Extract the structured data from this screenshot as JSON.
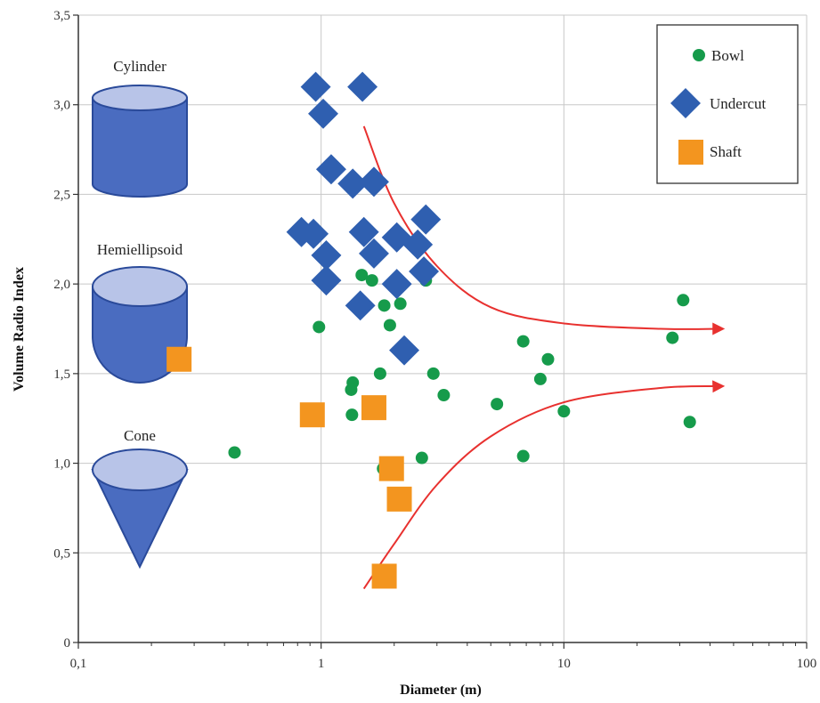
{
  "chart_data": {
    "type": "scatter",
    "xscale": "log",
    "xlim": [
      0.1,
      100
    ],
    "ylim": [
      0,
      3.5
    ],
    "xlabel": "Diameter (m)",
    "ylabel": "Volume Radio Index",
    "grid": true,
    "legend_position": "top-right",
    "x_ticks": [
      {
        "value": 0.1,
        "label": "0,1"
      },
      {
        "value": 1,
        "label": "1"
      },
      {
        "value": 10,
        "label": "10"
      },
      {
        "value": 100,
        "label": "100"
      }
    ],
    "y_ticks": [
      {
        "value": 0,
        "label": "0"
      },
      {
        "value": 0.5,
        "label": "0,5"
      },
      {
        "value": 1.0,
        "label": "1,0"
      },
      {
        "value": 1.5,
        "label": "1,5"
      },
      {
        "value": 2.0,
        "label": "2,0"
      },
      {
        "value": 2.5,
        "label": "2,5"
      },
      {
        "value": 3.0,
        "label": "3,0"
      },
      {
        "value": 3.5,
        "label": "3,5"
      }
    ],
    "series": [
      {
        "name": "Bowl",
        "marker": "circle",
        "color": "#169b4b",
        "points": [
          [
            0.44,
            1.06
          ],
          [
            0.98,
            1.76
          ],
          [
            1.35,
            1.45
          ],
          [
            1.33,
            1.41
          ],
          [
            1.34,
            1.27
          ],
          [
            1.47,
            2.05
          ],
          [
            1.62,
            2.02
          ],
          [
            1.75,
            1.5
          ],
          [
            1.82,
            1.88
          ],
          [
            1.92,
            1.77
          ],
          [
            2.12,
            1.89
          ],
          [
            2.7,
            2.02
          ],
          [
            2.9,
            1.5
          ],
          [
            3.2,
            1.38
          ],
          [
            1.8,
            0.97
          ],
          [
            2.6,
            1.03
          ],
          [
            5.3,
            1.33
          ],
          [
            6.8,
            1.68
          ],
          [
            6.8,
            1.04
          ],
          [
            8.0,
            1.47
          ],
          [
            8.6,
            1.58
          ],
          [
            10.0,
            1.29
          ],
          [
            28.0,
            1.7
          ],
          [
            31.0,
            1.91
          ],
          [
            33.0,
            1.23
          ]
        ]
      },
      {
        "name": "Undercut",
        "marker": "diamond",
        "color": "#2f5fb0",
        "points": [
          [
            0.95,
            3.1
          ],
          [
            1.48,
            3.1
          ],
          [
            1.02,
            2.95
          ],
          [
            1.1,
            2.64
          ],
          [
            1.35,
            2.56
          ],
          [
            1.65,
            2.57
          ],
          [
            0.83,
            2.29
          ],
          [
            0.93,
            2.28
          ],
          [
            1.05,
            2.16
          ],
          [
            1.05,
            2.02
          ],
          [
            1.5,
            2.29
          ],
          [
            1.65,
            2.17
          ],
          [
            2.05,
            2.26
          ],
          [
            2.5,
            2.22
          ],
          [
            2.7,
            2.36
          ],
          [
            2.65,
            2.07
          ],
          [
            2.05,
            2.0
          ],
          [
            1.45,
            1.88
          ],
          [
            2.2,
            1.63
          ]
        ]
      },
      {
        "name": "Shaft",
        "marker": "square",
        "color": "#f3951f",
        "points": [
          [
            0.26,
            1.58
          ],
          [
            0.92,
            1.27
          ],
          [
            1.65,
            1.31
          ],
          [
            1.95,
            0.97
          ],
          [
            2.1,
            0.8
          ],
          [
            1.82,
            0.37
          ]
        ]
      }
    ],
    "trend_curves": [
      {
        "color": "#e8312f",
        "points": [
          [
            1.5,
            2.88
          ],
          [
            2.0,
            2.45
          ],
          [
            3.0,
            2.1
          ],
          [
            5.0,
            1.87
          ],
          [
            10.0,
            1.78
          ],
          [
            25.0,
            1.75
          ],
          [
            45.0,
            1.75
          ]
        ]
      },
      {
        "color": "#e8312f",
        "points": [
          [
            1.5,
            0.3
          ],
          [
            2.0,
            0.55
          ],
          [
            3.0,
            0.88
          ],
          [
            5.0,
            1.15
          ],
          [
            10.0,
            1.34
          ],
          [
            25.0,
            1.42
          ],
          [
            45.0,
            1.43
          ]
        ]
      }
    ],
    "shape_annotations": [
      {
        "label": "Cylinder",
        "kind": "cylinder"
      },
      {
        "label": "Hemiellipsoid",
        "kind": "hemiellipsoid"
      },
      {
        "label": "Cone",
        "kind": "cone"
      }
    ],
    "colors": {
      "grid": "#c8c8c8",
      "axis": "#333333",
      "shape_fill": "#4a6cc0",
      "shape_top": "#b8c4e8",
      "shape_stroke": "#2a4a9a"
    }
  }
}
